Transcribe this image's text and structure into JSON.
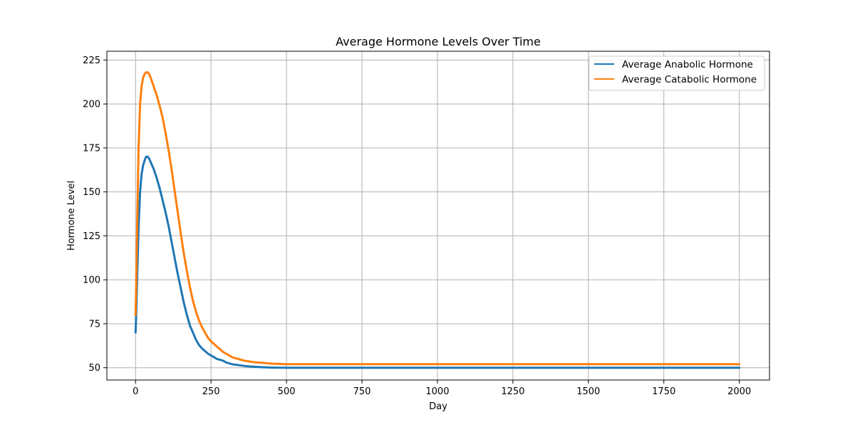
{
  "chart_data": {
    "type": "line",
    "title": "Average Hormone Levels Over Time",
    "xlabel": "Day",
    "ylabel": "Hormone Level",
    "xlim": [
      -95,
      2100
    ],
    "ylim": [
      43,
      230
    ],
    "xticks": [
      0,
      250,
      500,
      750,
      1000,
      1250,
      1500,
      1750,
      2000
    ],
    "yticks": [
      50,
      75,
      100,
      125,
      150,
      175,
      200,
      225
    ],
    "grid": true,
    "legend_position": "top-right",
    "series": [
      {
        "name": "Average Anabolic Hormone",
        "color": "#1f77b4",
        "x": [
          0,
          2,
          5,
          10,
          15,
          20,
          25,
          30,
          35,
          40,
          45,
          50,
          60,
          70,
          80,
          90,
          100,
          110,
          120,
          130,
          140,
          150,
          160,
          170,
          180,
          190,
          200,
          210,
          220,
          230,
          240,
          250,
          260,
          270,
          280,
          290,
          300,
          320,
          340,
          360,
          380,
          400,
          420,
          450,
          500,
          600,
          800,
          1000,
          1250,
          1500,
          1750,
          2000
        ],
        "y": [
          70,
          80,
          100,
          130,
          150,
          160,
          165,
          168,
          170,
          170,
          169,
          167,
          163,
          158,
          152,
          145,
          138,
          130,
          121,
          112,
          103,
          95,
          87,
          80,
          74,
          70,
          66,
          63,
          61,
          59.5,
          58,
          57,
          56,
          55,
          54.5,
          54,
          53,
          52,
          51.5,
          51,
          50.7,
          50.5,
          50.3,
          50.1,
          50,
          50,
          50,
          50,
          50,
          50,
          50,
          50
        ]
      },
      {
        "name": "Average Catabolic Hormone",
        "color": "#ff7f0e",
        "x": [
          0,
          2,
          5,
          10,
          15,
          20,
          25,
          30,
          35,
          40,
          45,
          50,
          60,
          70,
          80,
          90,
          100,
          110,
          120,
          130,
          140,
          150,
          160,
          170,
          180,
          190,
          200,
          210,
          220,
          230,
          240,
          250,
          260,
          270,
          280,
          290,
          300,
          320,
          340,
          360,
          380,
          400,
          420,
          450,
          500,
          600,
          800,
          1000,
          1250,
          1500,
          1750,
          2000
        ],
        "y": [
          80,
          95,
          130,
          175,
          200,
          210,
          215,
          217,
          218,
          218,
          217,
          215,
          210,
          205,
          199,
          192,
          183,
          173,
          162,
          150,
          138,
          126,
          115,
          105,
          96,
          88,
          82,
          77,
          73,
          70,
          67,
          65,
          63.5,
          62,
          60.5,
          59,
          58,
          56,
          55,
          54,
          53.5,
          53,
          52.8,
          52.3,
          52,
          52,
          52,
          52,
          52,
          52,
          52,
          52
        ]
      }
    ]
  }
}
